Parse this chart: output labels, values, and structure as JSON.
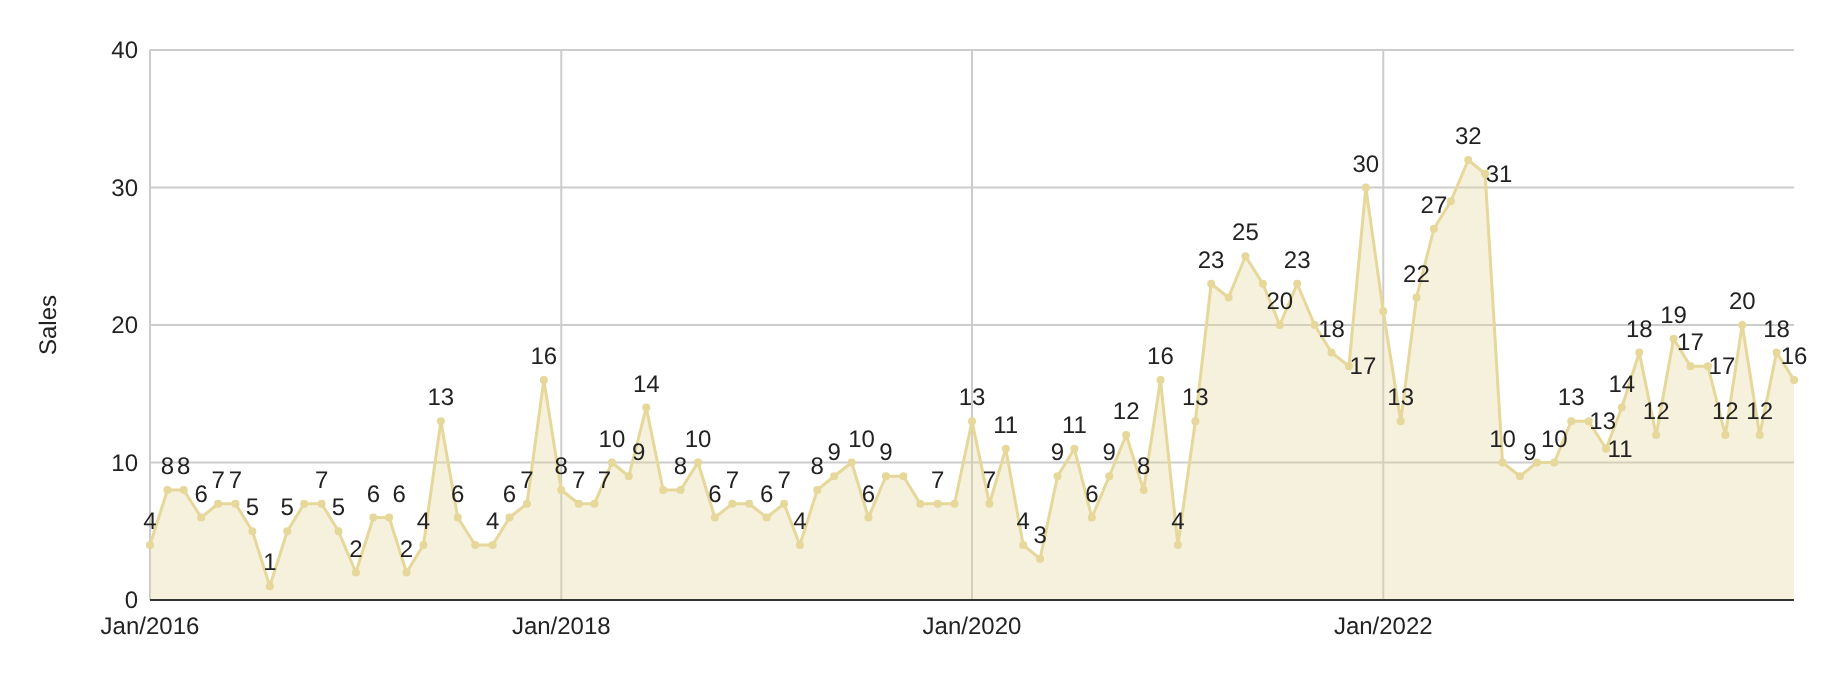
{
  "chart_data": {
    "type": "area",
    "ylabel": "Sales",
    "x": [
      "2016-01",
      "2016-02",
      "2016-03",
      "2016-04",
      "2016-05",
      "2016-06",
      "2016-07",
      "2016-08",
      "2016-09",
      "2016-10",
      "2016-11",
      "2016-12",
      "2017-01",
      "2017-02",
      "2017-03",
      "2017-04",
      "2017-05",
      "2017-06",
      "2017-07",
      "2017-08",
      "2017-09",
      "2017-10",
      "2017-11",
      "2017-12",
      "2018-01",
      "2018-02",
      "2018-03",
      "2018-04",
      "2018-05",
      "2018-06",
      "2018-07",
      "2018-08",
      "2018-09",
      "2018-10",
      "2018-11",
      "2018-12",
      "2019-01",
      "2019-02",
      "2019-03",
      "2019-04",
      "2019-05",
      "2019-06",
      "2019-07",
      "2019-08",
      "2019-09",
      "2019-10",
      "2019-11",
      "2019-12",
      "2020-01",
      "2020-02",
      "2020-03",
      "2020-04",
      "2020-05",
      "2020-06",
      "2020-07",
      "2020-08",
      "2020-09",
      "2020-10",
      "2020-11",
      "2020-12",
      "2021-01",
      "2021-02",
      "2021-03",
      "2021-04",
      "2021-05",
      "2021-06",
      "2021-07",
      "2021-08",
      "2021-09",
      "2021-10",
      "2021-11",
      "2021-12",
      "2022-01",
      "2022-02",
      "2022-03",
      "2022-04",
      "2022-05",
      "2022-06",
      "2022-07",
      "2022-08",
      "2022-09",
      "2022-10",
      "2022-11",
      "2022-12",
      "2023-01",
      "2023-02",
      "2023-03",
      "2023-04",
      "2023-05",
      "2023-06",
      "2023-07",
      "2023-08",
      "2023-09",
      "2023-10",
      "2023-11",
      "2023-12",
      "2024-01"
    ],
    "series": [
      {
        "color": "#e6d79a",
        "values": [
          4,
          8,
          8,
          6,
          7,
          7,
          5,
          1,
          5,
          7,
          7,
          5,
          2,
          6,
          6,
          2,
          4,
          13,
          6,
          4,
          4,
          6,
          7,
          16,
          8,
          7,
          7,
          10,
          9,
          14,
          8,
          8,
          10,
          6,
          7,
          7,
          6,
          7,
          4,
          8,
          9,
          10,
          6,
          9,
          9,
          7,
          7,
          7,
          13,
          7,
          11,
          4,
          3,
          9,
          11,
          6,
          9,
          12,
          8,
          16,
          4,
          13,
          23,
          22,
          25,
          23,
          20,
          23,
          20,
          18,
          17,
          30,
          21,
          13,
          22,
          27,
          29,
          32,
          31,
          10,
          9,
          10,
          10,
          13,
          13,
          11,
          14,
          18,
          12,
          19,
          17,
          17,
          12,
          20,
          12,
          18,
          16
        ],
        "value_labels": [
          "4",
          "8",
          "8",
          "6",
          "7",
          "7",
          "5",
          "1",
          "5",
          null,
          "7",
          "5",
          "2",
          "6",
          "6",
          "2",
          "4",
          "13",
          "6",
          null,
          "4",
          "6",
          "7",
          "16",
          "8",
          "7",
          "7",
          "10",
          "9",
          "14",
          null,
          "8",
          "10",
          "6",
          "7",
          null,
          "6",
          "7",
          "4",
          "8",
          "9",
          "10",
          "6",
          "9",
          null,
          null,
          "7",
          null,
          "13",
          "7",
          "11",
          "4",
          "3",
          "9",
          "11",
          "6",
          "9",
          "12",
          "8",
          "16",
          "4",
          "13",
          "23",
          null,
          "25",
          null,
          "20",
          "23",
          null,
          "18",
          "17",
          "30",
          null,
          "13",
          "22",
          "27",
          null,
          "32",
          "31",
          "10",
          "9",
          null,
          "10",
          "13",
          "13",
          "11",
          "14",
          "18",
          "12",
          "19",
          "17",
          "17",
          "12",
          "20",
          "12",
          "18",
          "16"
        ]
      }
    ],
    "xlim": [
      "2016-01",
      "2024-01"
    ],
    "xticks": [
      {
        "value": "2016-01",
        "label": "Jan/2016"
      },
      {
        "value": "2018-01",
        "label": "Jan/2018"
      },
      {
        "value": "2020-01",
        "label": "Jan/2020"
      },
      {
        "value": "2022-01",
        "label": "Jan/2022"
      }
    ],
    "ylim": [
      0,
      40
    ],
    "yticks": [
      0,
      10,
      20,
      30,
      40
    ],
    "grid": true,
    "marker": "circle"
  }
}
